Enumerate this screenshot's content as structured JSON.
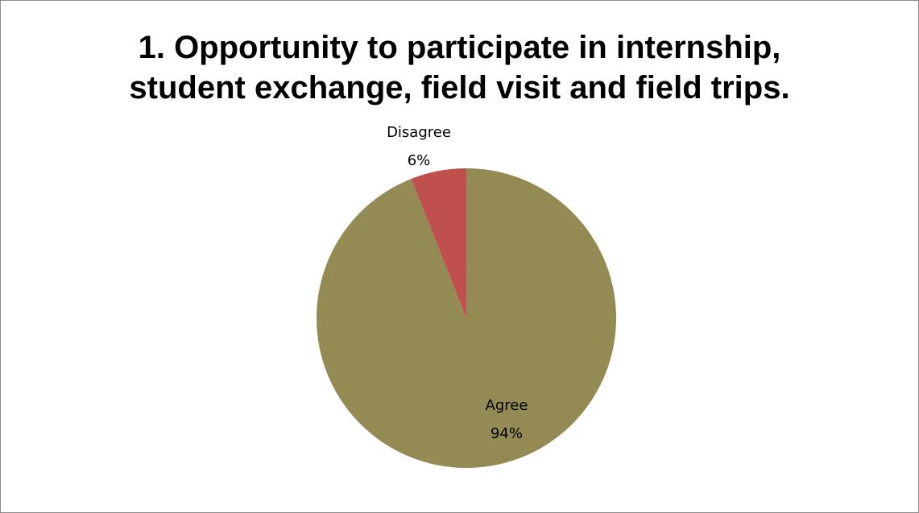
{
  "chart_data": {
    "type": "pie",
    "title_lines": [
      "1. Opportunity to participate in internship,",
      "student exchange, field visit and field trips."
    ],
    "slices": [
      {
        "label": "Agree",
        "percent_label": "94%",
        "value": 94,
        "color": "#948a54"
      },
      {
        "label": "Disagree",
        "percent_label": "6%",
        "value": 6,
        "color": "#c0504d"
      }
    ],
    "start_angle_deg": 0,
    "direction": "clockwise-from-top"
  }
}
